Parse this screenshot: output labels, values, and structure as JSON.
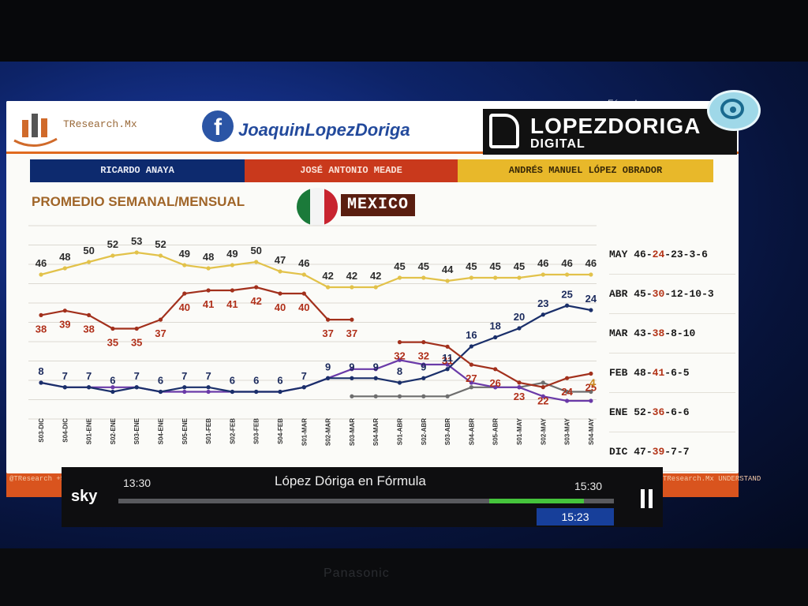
{
  "header": {
    "logo_text": "TResearch.Mx",
    "facebook_text": "JoaquinLopezDoriga",
    "brand_title": "LOPEZDORIGA",
    "brand_subtitle": "DIGITAL",
    "formula_text": "Fórmula"
  },
  "legend": {
    "anaya": "RICARDO ANAYA",
    "meade": "JOSÉ ANTONIO MEADE",
    "amlo": "ANDRÉS MANUEL LÓPEZ OBRADOR"
  },
  "subtitle": "PROMEDIO SEMANAL/MENSUAL",
  "country": "MEXICO",
  "colors": {
    "amlo": "#e2c24a",
    "meade": "#a2301c",
    "anaya": "#1a2f6a",
    "purple": "#6a3aa8",
    "gray": "#6e6e6e",
    "label_amlo": "#2d2d2d",
    "label_meade": "#b0301a",
    "label_anaya": "#1b2a5c"
  },
  "chart_data": {
    "type": "line",
    "categories": [
      "S03-DIC",
      "S04-DIC",
      "S01-ENE",
      "S02-ENE",
      "S03-ENE",
      "S04-ENE",
      "S05-ENE",
      "S01-FEB",
      "S02-FEB",
      "S03-FEB",
      "S04-FEB",
      "S01-MAR",
      "S02-MAR",
      "S03-MAR",
      "S04-MAR",
      "S01-ABR",
      "S02-ABR",
      "S03-ABR",
      "S04-ABR",
      "S05-ABR",
      "S01-MAY",
      "S02-MAY",
      "S03-MAY",
      "S04-MAY"
    ],
    "series": [
      {
        "key": "amlo",
        "values": [
          46,
          48,
          50,
          52,
          53,
          52,
          49,
          48,
          49,
          50,
          47,
          46,
          42,
          42,
          42,
          45,
          45,
          44,
          45,
          45,
          45,
          46,
          46,
          46
        ]
      },
      {
        "key": "meade",
        "values": [
          38,
          39,
          38,
          35,
          35,
          37,
          40,
          41,
          41,
          42,
          40,
          40,
          37,
          37,
          null,
          32,
          32,
          31,
          27,
          26,
          23,
          22,
          24,
          25
        ]
      },
      {
        "key": "anaya",
        "values": [
          8,
          7,
          7,
          6,
          7,
          6,
          7,
          7,
          6,
          6,
          6,
          7,
          9,
          9,
          9,
          8,
          9,
          11,
          16,
          18,
          20,
          23,
          25,
          24
        ]
      },
      {
        "key": "purple",
        "values": [
          8,
          7,
          7,
          7,
          7,
          6,
          6,
          6,
          6,
          6,
          6,
          7,
          9,
          11,
          11,
          13,
          12,
          12,
          8,
          7,
          7,
          5,
          4,
          4
        ]
      },
      {
        "key": "gray",
        "values": [
          null,
          null,
          null,
          null,
          null,
          null,
          null,
          null,
          null,
          null,
          null,
          null,
          null,
          5,
          5,
          5,
          5,
          5,
          7,
          7,
          7,
          8,
          6,
          6
        ]
      }
    ],
    "amlo_labels": [
      "46",
      "48",
      "50",
      "52",
      "53",
      "52",
      "49",
      "48",
      "49",
      "50",
      "47",
      "46",
      "42",
      "42",
      "42",
      "45",
      "45",
      "44",
      "45",
      "45",
      "45",
      "46",
      "46",
      "46"
    ],
    "meade_labels": [
      "38",
      "39",
      "38",
      "35",
      "35",
      "37",
      "40",
      "41",
      "41",
      "42",
      "40",
      "40",
      "37",
      "37",
      "",
      "32",
      "32",
      "31",
      "27",
      "26",
      "23",
      "22",
      "24",
      "25"
    ],
    "anaya_labels": [
      "8",
      "7",
      "7",
      "6",
      "7",
      "6",
      "7",
      "7",
      "6",
      "6",
      "6",
      "7",
      "9",
      "9",
      "9",
      "8",
      "9",
      "11",
      "16",
      "18",
      "20",
      "23",
      "25",
      "24"
    ],
    "extra_label": "4"
  },
  "side_table": [
    {
      "month": "MAY",
      "amlo": "46",
      "meade": "24",
      "anaya": "23",
      "other": "3-6"
    },
    {
      "month": "ABR",
      "amlo": "45",
      "meade": "30",
      "anaya": "12",
      "other": "10-3"
    },
    {
      "month": "MAR",
      "amlo": "43",
      "meade": "38",
      "anaya": "8",
      "other": "10"
    },
    {
      "month": "FEB",
      "amlo": "48",
      "meade": "41",
      "anaya": "6",
      "other": "5"
    },
    {
      "month": "ENE",
      "amlo": "52",
      "meade": "36",
      "anaya": "6",
      "other": "6"
    },
    {
      "month": "DIC",
      "amlo": "47",
      "meade": "39",
      "anaya": "7",
      "other": "7"
    }
  ],
  "band": {
    "left": "@TResearch +52144091",
    "right": "TResearch.Mx UNDERSTAND"
  },
  "player": {
    "logo": "sky",
    "start": "13:30",
    "end": "15:30",
    "title": "López Dóriga en Fórmula",
    "now": "15:23",
    "progress": 0.94
  },
  "tv_brand": "Panasonic"
}
